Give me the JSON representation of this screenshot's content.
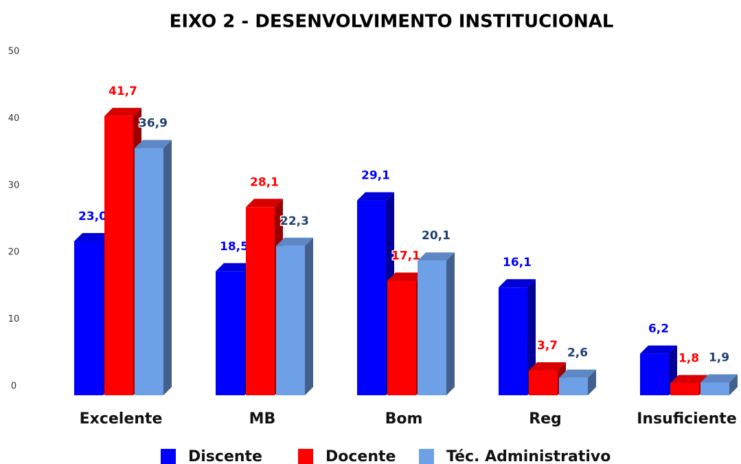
{
  "chart_data": {
    "type": "bar3d",
    "title": "EIXO 2 - DESENVOLVIMENTO INSTITUCIONAL",
    "categories": [
      "Excelente",
      "MB",
      "Bom",
      "Reg",
      "Insuficiente"
    ],
    "series": [
      {
        "name": "Discente",
        "color": "#0000ff",
        "label_color": "#0000ff",
        "values": [
          23.0,
          18.5,
          29.1,
          16.1,
          6.2
        ],
        "value_labels": [
          "23,0",
          "18,5",
          "29,1",
          "16,1",
          "6,2"
        ]
      },
      {
        "name": "Docente",
        "color": "#ff0000",
        "label_color": "#ff0000",
        "values": [
          41.7,
          28.1,
          17.1,
          3.7,
          1.8
        ],
        "value_labels": [
          "41,7",
          "28,1",
          "17,1",
          "3,7",
          "1,8"
        ]
      },
      {
        "name": "Téc. Administrativo",
        "color": "#6ea0e8",
        "label_color": "#1f3f6f",
        "values": [
          36.9,
          22.3,
          20.1,
          2.6,
          1.9
        ],
        "value_labels": [
          "36,9",
          "22,3",
          "20,1",
          "2,6",
          "1,9"
        ]
      }
    ],
    "ylim": [
      0,
      50
    ],
    "yticks": [
      0,
      10,
      20,
      30,
      40,
      50
    ],
    "legend": "bottom"
  }
}
